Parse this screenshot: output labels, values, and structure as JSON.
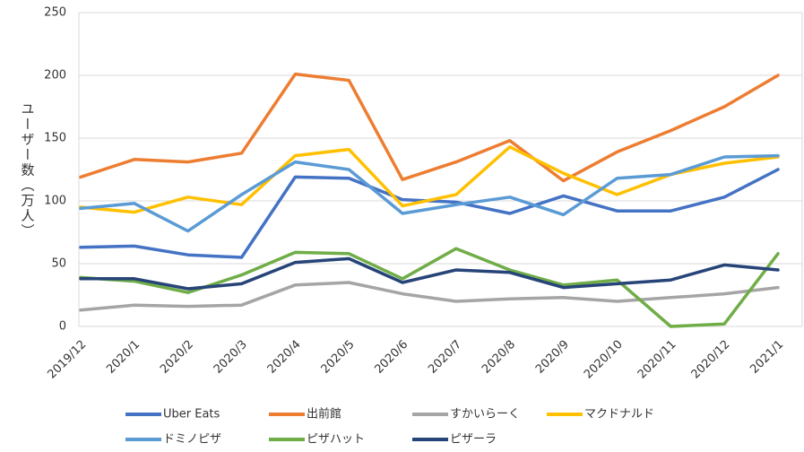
{
  "chart_data": {
    "type": "line",
    "y_label": "ユーザー数（万人）",
    "categories": [
      "2019/12",
      "2020/1",
      "2020/2",
      "2020/3",
      "2020/4",
      "2020/5",
      "2020/6",
      "2020/7",
      "2020/8",
      "2020/9",
      "2020/10",
      "2020/11",
      "2020/12",
      "2021/1"
    ],
    "series": [
      {
        "name": "Uber Eats",
        "color": "#4472c4",
        "values": [
          63,
          64,
          57,
          55,
          119,
          118,
          101,
          99,
          90,
          104,
          92,
          92,
          103,
          125
        ]
      },
      {
        "name": "出前館",
        "color": "#ed7d31",
        "values": [
          119,
          133,
          131,
          138,
          201,
          196,
          117,
          131,
          148,
          116,
          139,
          156,
          175,
          200
        ]
      },
      {
        "name": "すかいらーく",
        "color": "#a5a5a5",
        "values": [
          13,
          17,
          16,
          17,
          33,
          35,
          26,
          20,
          22,
          23,
          20,
          23,
          26,
          31
        ]
      },
      {
        "name": "マクドナルド",
        "color": "#ffc000",
        "values": [
          95,
          91,
          103,
          97,
          136,
          141,
          96,
          105,
          143,
          122,
          105,
          121,
          130,
          135
        ]
      },
      {
        "name": "ドミノピザ",
        "color": "#5b9bd5",
        "values": [
          94,
          98,
          76,
          105,
          131,
          125,
          90,
          97,
          103,
          89,
          118,
          121,
          135,
          136
        ]
      },
      {
        "name": "ピザハット",
        "color": "#70ad47",
        "values": [
          39,
          36,
          27,
          41,
          59,
          58,
          38,
          62,
          45,
          33,
          37,
          0,
          2,
          58
        ]
      },
      {
        "name": "ピザーラ",
        "color": "#264478",
        "values": [
          38,
          38,
          30,
          34,
          51,
          54,
          35,
          45,
          43,
          31,
          34,
          37,
          49,
          45
        ]
      }
    ],
    "ylim": [
      0,
      250
    ],
    "yticks": [
      0,
      50,
      100,
      150,
      200,
      250
    ],
    "grid": true
  }
}
